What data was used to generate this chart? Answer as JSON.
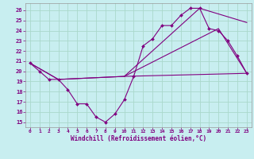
{
  "xlabel": "Windchill (Refroidissement éolien,°C)",
  "xlim": [
    -0.5,
    23.5
  ],
  "ylim": [
    14.5,
    26.7
  ],
  "yticks": [
    15,
    16,
    17,
    18,
    19,
    20,
    21,
    22,
    23,
    24,
    25,
    26
  ],
  "xticks": [
    0,
    1,
    2,
    3,
    4,
    5,
    6,
    7,
    8,
    9,
    10,
    11,
    12,
    13,
    14,
    15,
    16,
    17,
    18,
    19,
    20,
    21,
    22,
    23
  ],
  "bg_color": "#c8eef0",
  "line_color": "#800080",
  "grid_color": "#aad8cc",
  "line1_x": [
    0,
    1,
    2,
    3,
    4,
    5,
    6,
    7,
    8,
    9,
    10,
    11,
    12,
    13,
    14,
    15,
    16,
    17,
    18,
    19,
    20,
    21,
    22,
    23
  ],
  "line1_y": [
    20.8,
    20.0,
    19.2,
    19.2,
    18.2,
    16.8,
    16.8,
    15.5,
    15.0,
    15.8,
    17.2,
    19.5,
    22.5,
    23.2,
    24.5,
    24.5,
    25.5,
    26.2,
    26.2,
    24.2,
    24.0,
    23.0,
    21.5,
    19.8
  ],
  "line2_x": [
    0,
    3,
    10,
    18,
    23
  ],
  "line2_y": [
    20.8,
    19.2,
    19.5,
    26.2,
    24.8
  ],
  "line3_x": [
    0,
    3,
    10,
    20,
    23
  ],
  "line3_y": [
    20.8,
    19.2,
    19.5,
    24.2,
    19.8
  ],
  "hline_x": [
    10,
    23
  ],
  "hline_y": [
    19.5,
    19.8
  ]
}
